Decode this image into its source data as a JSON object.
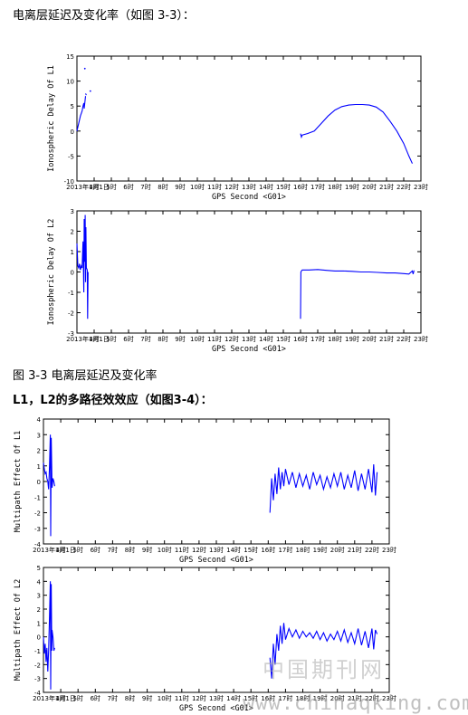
{
  "text": {
    "heading_ionosphere": "电离层延迟及变化率（如图 3-3）：",
    "figure_caption": "图 3-3 电离层延迟及变化率",
    "heading_multipath": "L1，L2的多路径效效应（如图3-4）：",
    "watermark_cn": "中国期刊网",
    "watermark_url": "www.chinaqking.com"
  },
  "colors": {
    "series": "#0000ff",
    "axis": "#000000",
    "background": "#ffffff"
  },
  "chart_data": [
    {
      "type": "line",
      "title": "",
      "xlabel": "GPS Second <G01>",
      "ylabel": "Ionospheric Delay Of L1",
      "x_ticks": [
        "2013年1月1日",
        "4时",
        "5时",
        "6时",
        "7时",
        "8时",
        "9时",
        "10时",
        "11时",
        "12时",
        "13时",
        "14时",
        "15时",
        "16时",
        "17时",
        "18时",
        "19时",
        "20时",
        "21时",
        "22时",
        "23时"
      ],
      "xlim": [
        3,
        23
      ],
      "y_ticks": [
        15,
        10,
        5,
        0,
        -5,
        -10
      ],
      "ylim": [
        -10,
        15
      ],
      "grid": false,
      "series": [
        {
          "x": [
            3.0,
            3.1,
            3.2,
            3.3,
            3.35,
            3.4,
            3.42,
            3.5
          ],
          "y": [
            0,
            1.5,
            3,
            4,
            5,
            5.6,
            4.5,
            7
          ]
        },
        {
          "x": [
            3.5,
            3.55
          ],
          "y": [
            7.5,
            7.2
          ]
        },
        {
          "x": [
            3.78
          ],
          "y": [
            8
          ]
        },
        {
          "x": [
            3.46
          ],
          "y": [
            12.5
          ]
        },
        {
          "x": [
            16.0,
            16.05,
            16.1,
            16.4,
            16.8,
            17.2,
            17.6,
            18.0,
            18.4,
            18.8,
            19.2,
            19.6,
            20.0,
            20.4,
            20.8,
            21.2,
            21.6,
            22.0,
            22.3,
            22.5
          ],
          "y": [
            -0.5,
            -1.2,
            -0.8,
            -0.5,
            0,
            1.5,
            3,
            4.2,
            4.9,
            5.2,
            5.3,
            5.3,
            5.2,
            4.8,
            3.8,
            2,
            0,
            -2.5,
            -5,
            -6.5
          ]
        }
      ]
    },
    {
      "type": "line",
      "title": "",
      "xlabel": "GPS Second <G01>",
      "ylabel": "Ionospheric Delay Of L2",
      "x_ticks": [
        "2013年1月1日",
        "4时",
        "5时",
        "6时",
        "7时",
        "8时",
        "9时",
        "10时",
        "11时",
        "12时",
        "13时",
        "14时",
        "15时",
        "16时",
        "17时",
        "18时",
        "19时",
        "20时",
        "21时",
        "22时",
        "23时"
      ],
      "xlim": [
        3,
        23
      ],
      "y_ticks": [
        3,
        2,
        1,
        0,
        -1,
        -2,
        -3
      ],
      "ylim": [
        -3,
        3
      ],
      "grid": false,
      "series": [
        {
          "x": [
            3.0,
            3.05,
            3.1,
            3.15,
            3.2,
            3.25,
            3.3,
            3.35,
            3.4,
            3.42,
            3.45,
            3.48,
            3.5,
            3.52,
            3.55,
            3.6,
            3.62,
            3.65
          ],
          "y": [
            1.4,
            0.3,
            0.2,
            0.4,
            0.1,
            0.3,
            0.2,
            1.5,
            -1.0,
            2.6,
            0.5,
            2.8,
            -0.5,
            2.2,
            0.2,
            0.1,
            -2.3,
            0
          ]
        },
        {
          "x": [
            16.0,
            16.02,
            16.05,
            16.1,
            16.5,
            17.0,
            17.5,
            18.0,
            18.5,
            19.0,
            19.5,
            20.0,
            20.5,
            21.0,
            21.5,
            22.0,
            22.3,
            22.5,
            22.55,
            22.6
          ],
          "y": [
            -2.3,
            0,
            0.05,
            0.1,
            0.1,
            0.12,
            0.08,
            0.05,
            0.05,
            0.03,
            0.0,
            0.0,
            -0.02,
            -0.05,
            -0.05,
            -0.08,
            -0.1,
            0.05,
            -0.1,
            0.08
          ]
        }
      ]
    },
    {
      "type": "line",
      "title": "",
      "xlabel": "GPS Second <G01>",
      "ylabel": "Multipath Effect Of L1",
      "x_ticks": [
        "2013年1月1日",
        "4时",
        "5时",
        "6时",
        "7时",
        "8时",
        "9时",
        "10时",
        "11时",
        "12时",
        "13时",
        "14时",
        "15时",
        "16时",
        "17时",
        "18时",
        "19时",
        "20时",
        "21时",
        "22时",
        "23时"
      ],
      "xlim": [
        3,
        23
      ],
      "y_ticks": [
        4,
        3,
        2,
        1,
        0,
        -1,
        -2,
        -3,
        -4
      ],
      "ylim": [
        -4,
        4
      ],
      "grid": false,
      "series": [
        {
          "x": [
            3.0,
            3.05,
            3.1,
            3.15,
            3.2,
            3.25,
            3.3,
            3.35,
            3.4,
            3.42,
            3.45,
            3.5,
            3.55,
            3.6,
            3.65
          ],
          "y": [
            1.2,
            0.8,
            0.5,
            0.6,
            0.2,
            0.0,
            -0.5,
            1.0,
            3.0,
            -3.5,
            2.8,
            -0.4,
            0.2,
            0.0,
            -0.3
          ]
        },
        {
          "x": [
            16.1,
            16.2,
            16.3,
            16.4,
            16.5,
            16.6,
            16.7,
            16.8,
            16.9,
            17.0,
            17.2,
            17.4,
            17.6,
            17.8,
            18.0,
            18.2,
            18.4,
            18.6,
            18.8,
            19.0,
            19.2,
            19.4,
            19.6,
            19.8,
            20.0,
            20.2,
            20.4,
            20.6,
            20.8,
            21.0,
            21.2,
            21.4,
            21.6,
            21.8,
            22.0,
            22.1,
            22.2,
            22.3
          ],
          "y": [
            -2.0,
            0.2,
            -1.2,
            0.5,
            -0.8,
            0.9,
            -0.5,
            0.6,
            -0.3,
            0.8,
            -0.2,
            0.6,
            -0.4,
            0.5,
            -0.3,
            0.4,
            -0.5,
            0.6,
            -0.2,
            0.4,
            -0.5,
            0.3,
            -0.4,
            0.5,
            -0.3,
            0.6,
            -0.5,
            0.4,
            -0.4,
            0.7,
            -0.6,
            0.5,
            -0.5,
            0.8,
            -0.7,
            1.1,
            -0.9,
            0.6
          ]
        }
      ]
    },
    {
      "type": "line",
      "title": "",
      "xlabel": "GPS Second <G01>",
      "ylabel": "Multipath Effect Of L2",
      "x_ticks": [
        "2013年1月1日",
        "4时",
        "5时",
        "6时",
        "7时",
        "8时",
        "9时",
        "10时",
        "11时",
        "12时",
        "13时",
        "14时",
        "15时",
        "16时",
        "17时",
        "18时",
        "19时",
        "20时",
        "21时",
        "22时",
        "23时"
      ],
      "xlim": [
        3,
        23
      ],
      "y_ticks": [
        5,
        4,
        3,
        2,
        1,
        0,
        -1,
        -2,
        -3,
        -4
      ],
      "ylim": [
        -4,
        5
      ],
      "grid": false,
      "series": [
        {
          "x": [
            3.0,
            3.05,
            3.1,
            3.15,
            3.2,
            3.25,
            3.3,
            3.35,
            3.4,
            3.42,
            3.45,
            3.48,
            3.5,
            3.55,
            3.6,
            3.65
          ],
          "y": [
            0.0,
            -1.2,
            -0.5,
            -1.8,
            -0.8,
            -2.5,
            -1.0,
            1.5,
            4.0,
            -3.8,
            3.8,
            -1.0,
            0.5,
            0.0,
            -1.0,
            -0.8
          ]
        },
        {
          "x": [
            16.1,
            16.2,
            16.3,
            16.4,
            16.5,
            16.6,
            16.7,
            16.8,
            16.9,
            17.0,
            17.2,
            17.4,
            17.6,
            17.8,
            18.0,
            18.2,
            18.4,
            18.6,
            18.8,
            19.0,
            19.2,
            19.4,
            19.6,
            19.8,
            20.0,
            20.2,
            20.4,
            20.6,
            20.8,
            21.0,
            21.2,
            21.4,
            21.6,
            21.8,
            22.0,
            22.1,
            22.2,
            22.3
          ],
          "y": [
            -1.5,
            -3.0,
            -0.5,
            -2.0,
            0.2,
            -1.0,
            0.8,
            -0.5,
            1.0,
            -0.2,
            0.6,
            0.0,
            0.5,
            -0.1,
            0.4,
            0.0,
            0.3,
            -0.1,
            0.4,
            -0.2,
            0.3,
            -0.3,
            0.2,
            -0.2,
            0.4,
            -0.3,
            0.5,
            -0.4,
            0.3,
            -0.5,
            0.6,
            -0.6,
            0.4,
            -0.8,
            0.6,
            -0.9,
            0.5,
            0.2
          ]
        }
      ]
    }
  ]
}
